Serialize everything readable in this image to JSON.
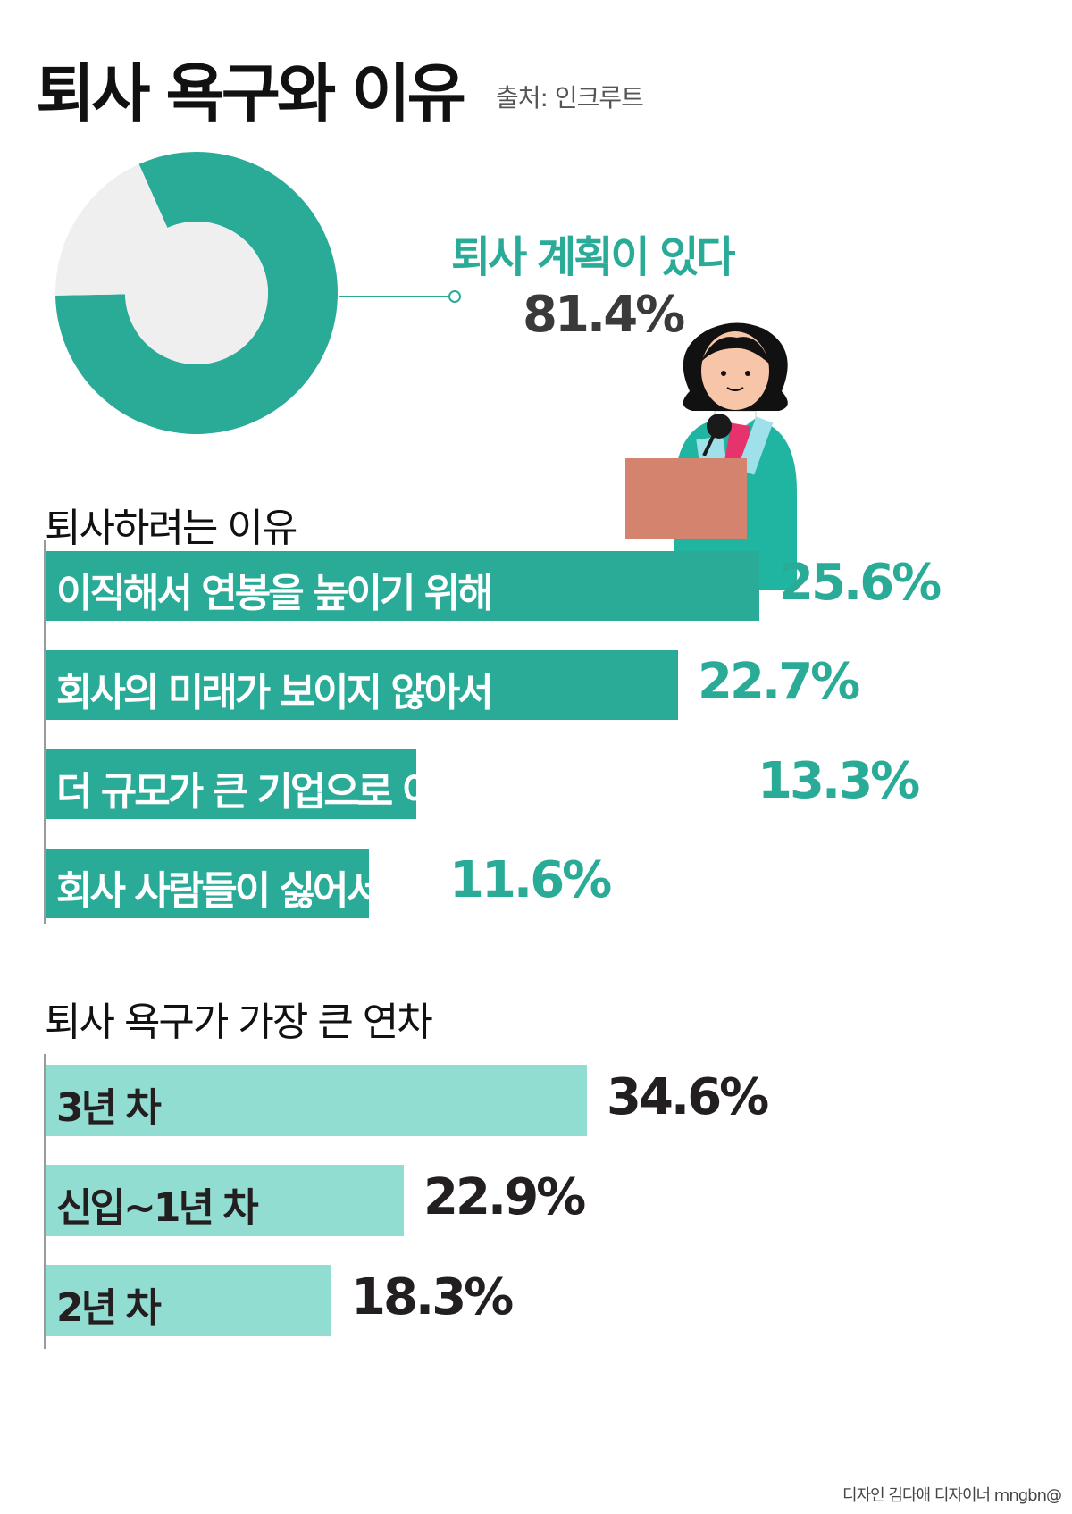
{
  "title": "퇴사 욕구와 이유",
  "source": "출처: 인크루트",
  "credit": "디자인 김다애 디자이너 mngbn@",
  "colors": {
    "teal": "#2aab98",
    "light_teal": "#92ddd2",
    "donut_rest": "#efefef",
    "dark": "#231f20"
  },
  "icons": [
    "woman-holding-box-illustration"
  ],
  "chart_data": [
    {
      "type": "pie",
      "variant": "donut",
      "slices": [
        {
          "label": "퇴사 계획이 있다",
          "value": 81.4
        },
        {
          "label": "",
          "value": 18.6
        }
      ],
      "callout": {
        "label": "퇴사 계획이 있다",
        "value_text": "81.4%"
      }
    },
    {
      "type": "bar",
      "orientation": "horizontal",
      "title": "퇴사하려는 이유",
      "categories": [
        "이직해서 연봉을 높이기 위해",
        "회사의 미래가 보이지 않아서",
        "더 규모가 큰 기업으로 이직하고 싶어서",
        "회사 사람들이 싫어서"
      ],
      "values": [
        25.6,
        22.7,
        13.3,
        11.6
      ],
      "value_labels": [
        "25.6%",
        "22.7%",
        "13.3%",
        "11.6%"
      ]
    },
    {
      "type": "bar",
      "orientation": "horizontal",
      "title": "퇴사 욕구가 가장 큰 연차",
      "categories": [
        "3년 차",
        "신입~1년 차",
        "2년 차"
      ],
      "values": [
        34.6,
        22.9,
        18.3
      ],
      "value_labels": [
        "34.6%",
        "22.9%",
        "18.3%"
      ]
    }
  ]
}
